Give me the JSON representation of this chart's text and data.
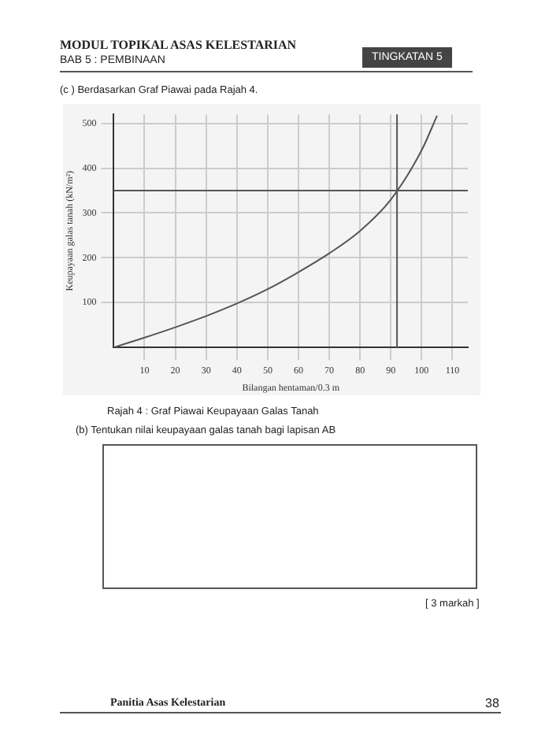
{
  "chart_data": {
    "type": "line",
    "title": "Rajah 4 : Graf Piawai Keupayaan Galas Tanah",
    "xlabel": "Bilangan hentaman/0.3 m",
    "ylabel": "Keupayaan galas tanah (kN/m²)",
    "annotations": [
      "MODUL TOPIKAL ASAS KELESTARIAN",
      "BAB 5 : PEMBINAAN",
      "TINGKATAN 5",
      "(c )   Berdasarkan Graf Piawai pada Rajah 4.",
      "(b)  Tentukan nilai keupayaan galas tanah bagi lapisan AB",
      "[ 3 markah ]",
      "Panitia Asas Kelestarian",
      "38"
    ],
    "x": [
      0,
      10,
      20,
      30,
      40,
      50,
      60,
      70,
      80,
      90,
      100,
      105
    ],
    "series": [
      {
        "color": "#555555",
        "values": [
          0,
          22,
          45,
          70,
          98,
          130,
          168,
          210,
          260,
          330,
          440,
          517
        ]
      }
    ],
    "xlim": [
      0,
      115
    ],
    "ylim": [
      0,
      520
    ],
    "xticks": [
      10,
      20,
      30,
      40,
      50,
      60,
      70,
      80,
      90,
      100,
      110
    ],
    "yticks": [
      100,
      200,
      300,
      400,
      500
    ],
    "ref_lines": [
      {
        "axis": "y",
        "value": 350,
        "color": "#555555"
      },
      {
        "axis": "x",
        "value": 92,
        "color": "#555555"
      }
    ],
    "grid": true,
    "marker": "none",
    "line_style": "solid",
    "legend": false
  }
}
